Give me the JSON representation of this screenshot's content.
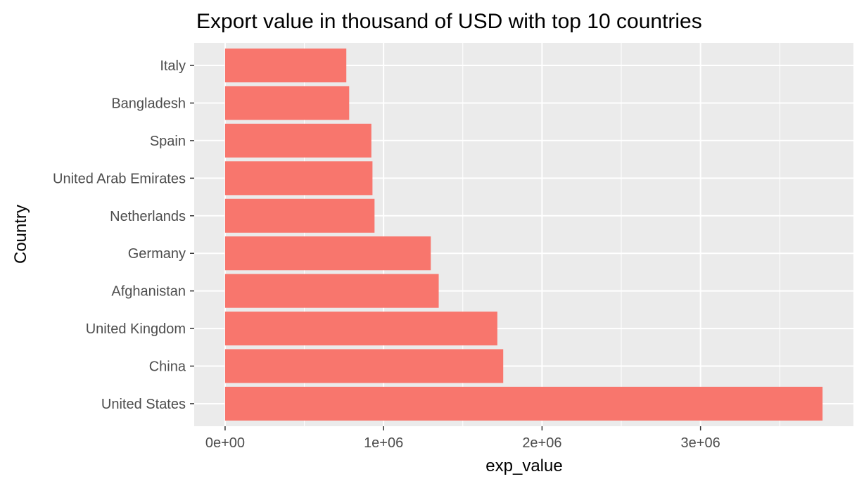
{
  "chart_data": {
    "type": "bar",
    "orientation": "horizontal",
    "title": "Export value in thousand of USD with top 10 countries",
    "xlabel": "exp_value",
    "ylabel": "Country",
    "categories": [
      "United States",
      "China",
      "United Kingdom",
      "Afghanistan",
      "Germany",
      "Netherlands",
      "United Arab Emirates",
      "Spain",
      "Bangladesh",
      "Italy"
    ],
    "values": [
      3770000,
      1755000,
      1718000,
      1348000,
      1298000,
      943000,
      930000,
      923000,
      783000,
      765000
    ],
    "x_ticks": [
      0,
      1000000,
      2000000,
      3000000
    ],
    "x_tick_labels": [
      "0e+00",
      "1e+06",
      "2e+06",
      "3e+06"
    ],
    "xlim": [
      -195000,
      3965000
    ],
    "bar_color": "#F8766D",
    "panel_color": "#EBEBEB",
    "grid": true,
    "legend": "none"
  }
}
